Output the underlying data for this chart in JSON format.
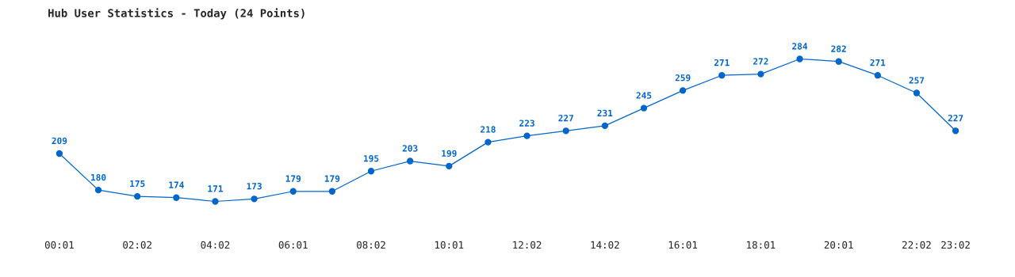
{
  "chart_data": {
    "type": "line",
    "title": "Hub User Statistics - Today (24 Points)",
    "categories": [
      "00:01",
      null,
      "02:02",
      null,
      "04:02",
      null,
      "06:01",
      null,
      "08:02",
      null,
      "10:01",
      null,
      "12:02",
      null,
      "14:02",
      null,
      "16:01",
      null,
      "18:01",
      null,
      "20:01",
      null,
      "22:02",
      "23:02"
    ],
    "series": [
      {
        "color": "#0066cc",
        "values": [
          209,
          180,
          175,
          174,
          171,
          173,
          179,
          179,
          195,
          203,
          199,
          218,
          223,
          227,
          231,
          245,
          259,
          271,
          272,
          284,
          282,
          271,
          257,
          227
        ]
      }
    ],
    "data_labels": true,
    "marker": "circle",
    "line_style": "solid",
    "grid": false,
    "legend": false,
    "tick_labels": "x"
  }
}
